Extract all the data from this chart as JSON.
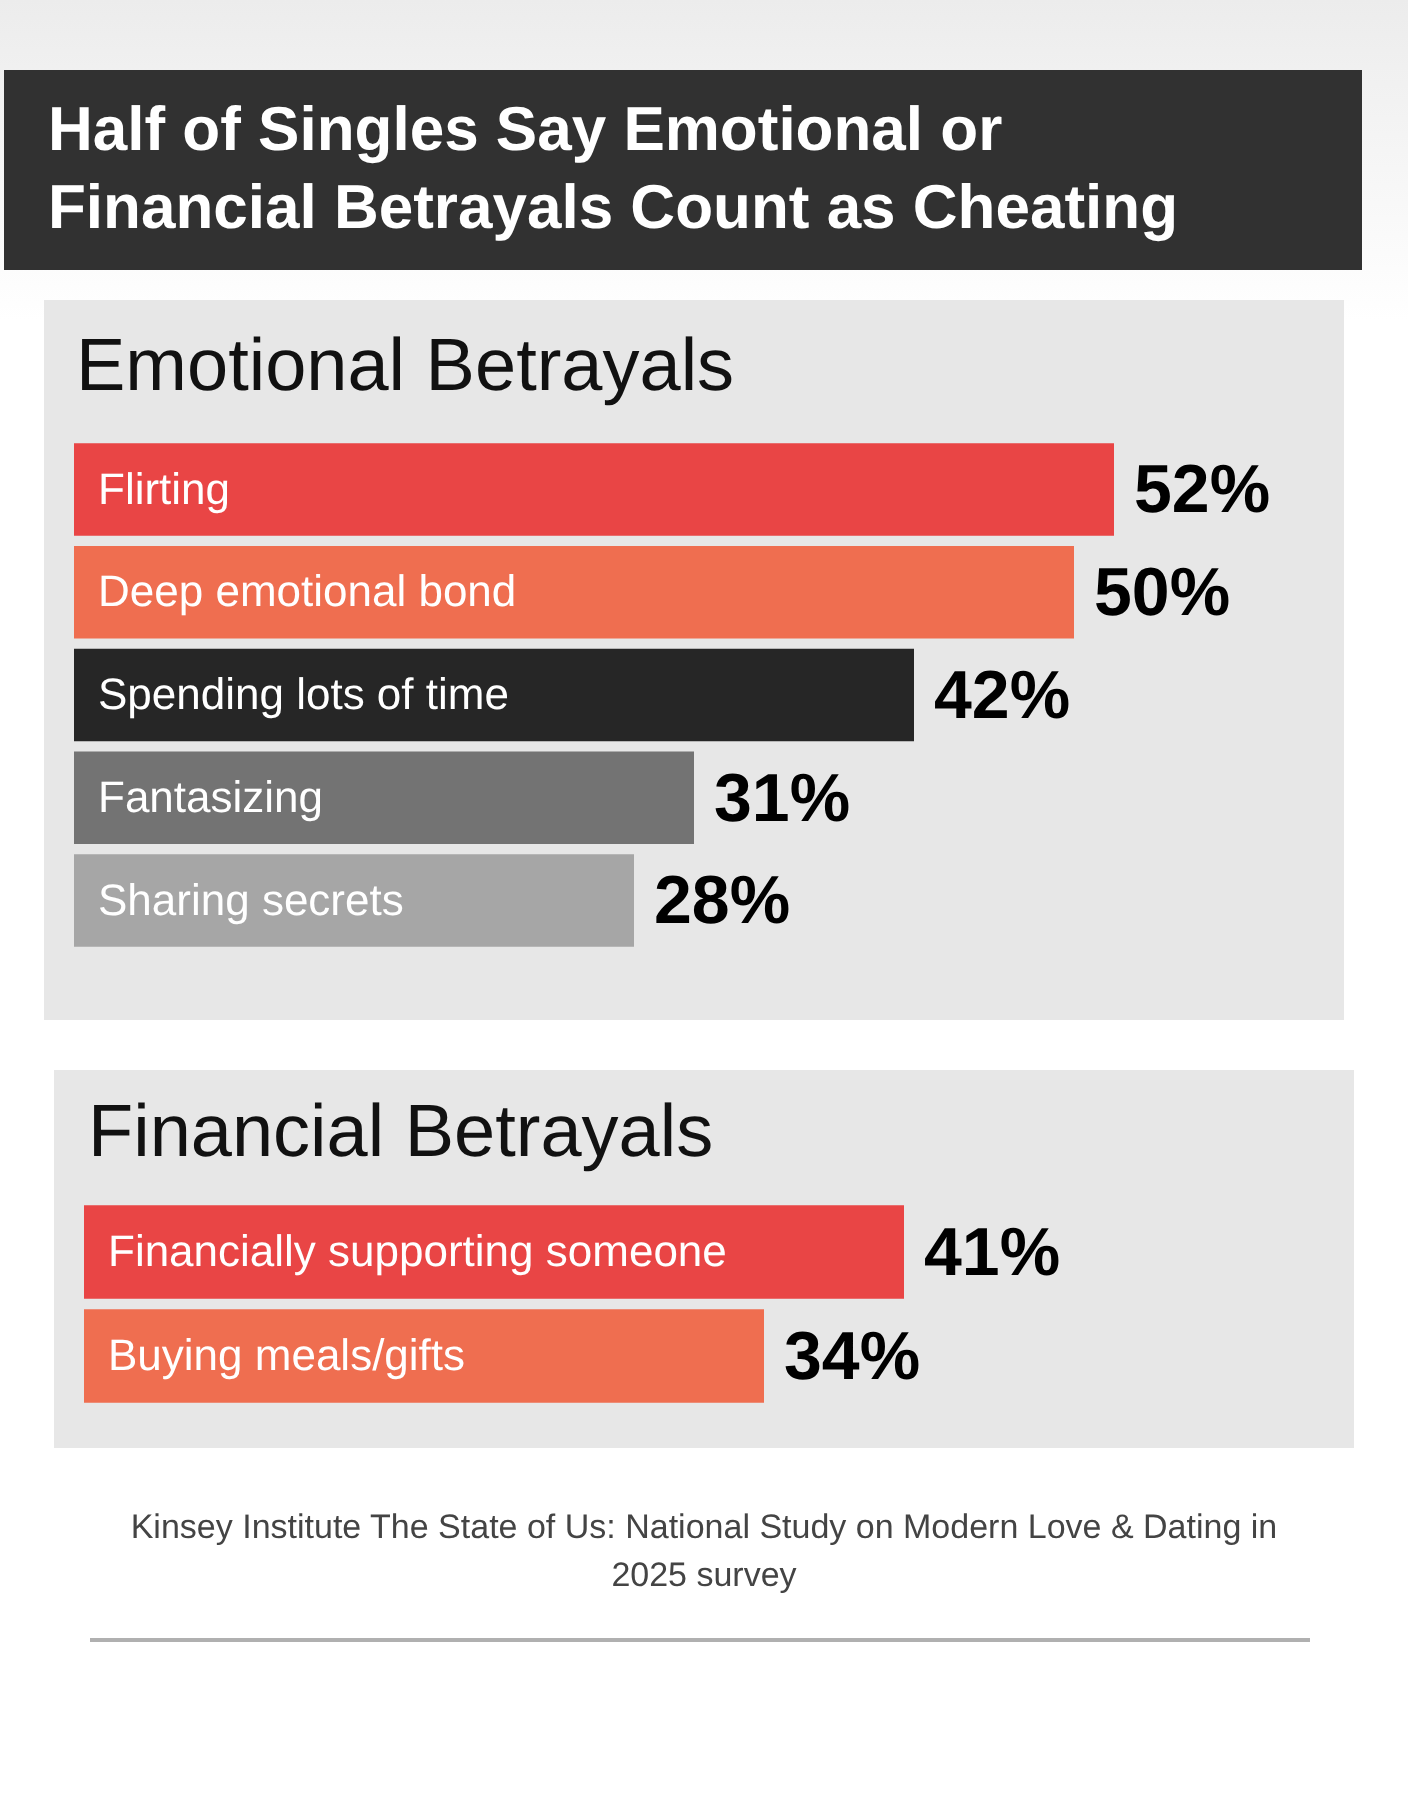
{
  "chart_data": [
    {
      "type": "bar",
      "orientation": "horizontal",
      "title": "Half of Singles Say Emotional or Financial Betrayals Count as Cheating",
      "subtitle": "Emotional Betrayals",
      "categories": [
        "Flirting",
        "Deep emotional bond",
        "Spending lots of time",
        "Fantasizing",
        "Sharing secrets"
      ],
      "values": [
        52,
        50,
        42,
        31,
        28
      ],
      "colors": [
        "#e94545",
        "#ef6e50",
        "#262626",
        "#737373",
        "#a6a6a6"
      ],
      "value_labels": [
        "52%",
        "50%",
        "42%",
        "31%",
        "28%"
      ],
      "tick_labels": "y"
    },
    {
      "type": "bar",
      "orientation": "horizontal",
      "title": "Financial Betrayals",
      "categories": [
        "Financially supporting someone",
        "Buying meals/gifts"
      ],
      "values": [
        41,
        34
      ],
      "colors": [
        "#e94545",
        "#ef6e50"
      ],
      "value_labels": [
        "41%",
        "34%"
      ],
      "tick_labels": "y",
      "annotations": [
        "Kinsey Institute The State of Us: National Study on Modern Love & Dating in 2025 survey"
      ]
    }
  ]
}
